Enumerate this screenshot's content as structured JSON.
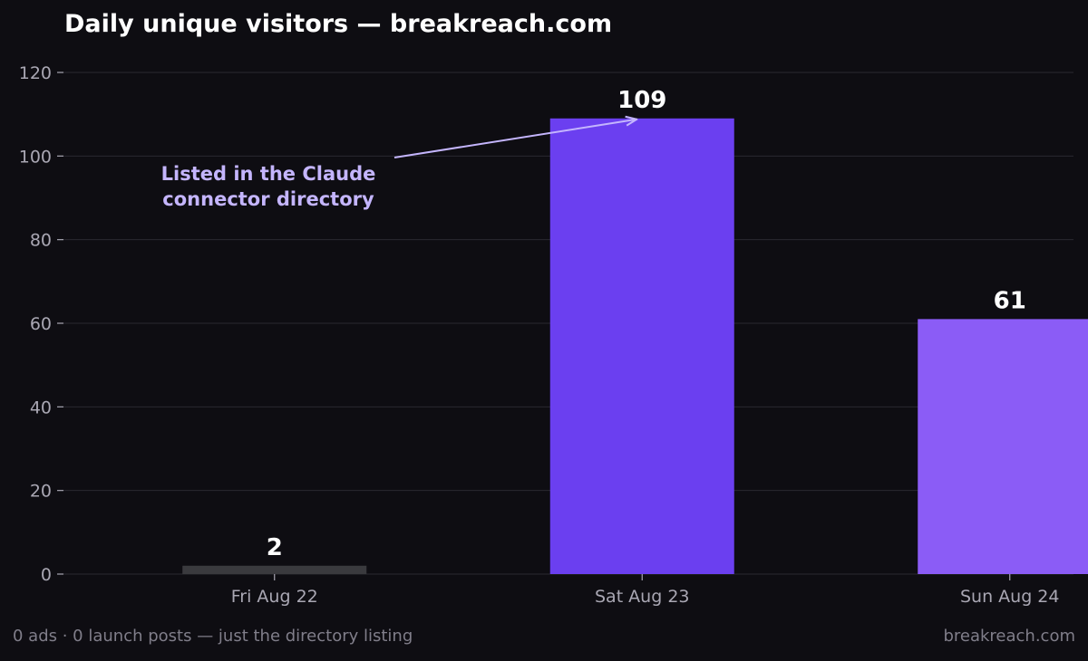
{
  "chart_data": {
    "type": "bar",
    "title": "Daily unique visitors — breakreach.com",
    "xlabel": "",
    "ylabel": "",
    "categories": [
      "Fri Aug 22",
      "Sat Aug 23",
      "Sun Aug 24"
    ],
    "values": [
      2,
      109,
      61
    ],
    "data_labels": [
      "2",
      "109",
      "61"
    ],
    "bar_colors": [
      "#3a3a3e",
      "#6b3ff0",
      "#8b5cf6"
    ],
    "ylim": [
      0,
      120
    ],
    "yticks": [
      0,
      20,
      40,
      60,
      80,
      100,
      120
    ],
    "grid": true,
    "legend": false,
    "annotation": {
      "lines": [
        "Listed in the Claude",
        "connector directory"
      ],
      "points_to_category": "Sat Aug 23",
      "color": "#c4b5fd"
    }
  },
  "footer": {
    "left": "0 ads · 0 launch posts — just the directory listing",
    "right": "breakreach.com"
  },
  "colors": {
    "background": "#0e0d12",
    "grid": "#2a2930",
    "axis_text": "#a9a7b3",
    "footer_text": "#807e8a"
  }
}
